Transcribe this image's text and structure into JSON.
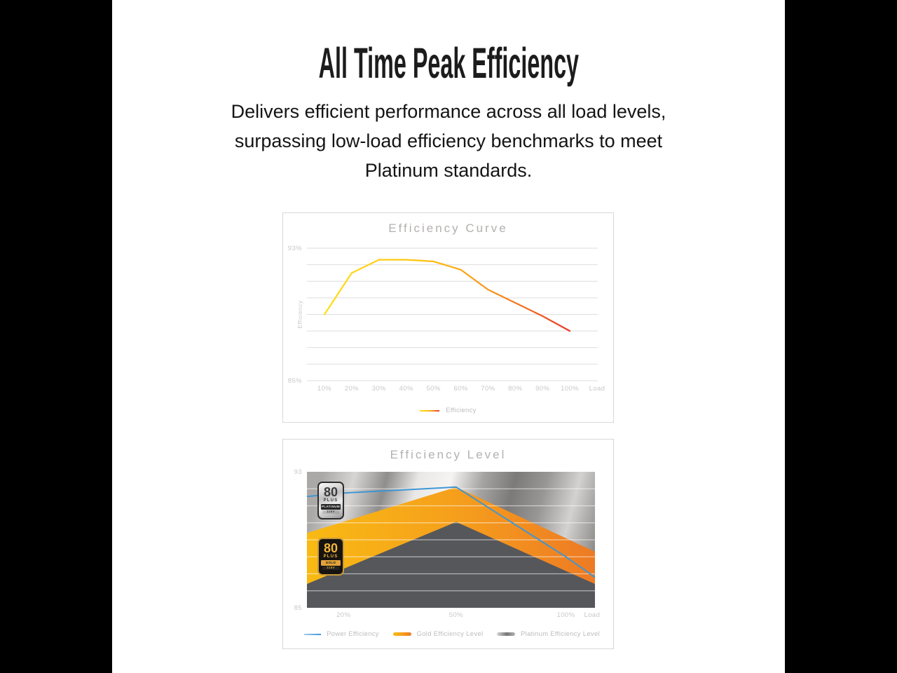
{
  "canvas": {
    "letterbox_color": "#000000",
    "content_bg": "#ffffff"
  },
  "header": {
    "title": "All Time Peak Efficiency",
    "subtitle_lines": [
      "Delivers efficient performance across all load levels,",
      "surpassing low-load efficiency benchmarks to meet",
      "Platinum standards."
    ]
  },
  "badges": {
    "platinum": {
      "number": "80",
      "plus": "PLUS",
      "tier": "PLATINUM",
      "volt": "115V"
    },
    "gold": {
      "number": "80",
      "plus": "PLUS",
      "tier": "GOLD",
      "volt": "115V"
    }
  },
  "chart_data": [
    {
      "type": "line",
      "title": "Efficiency Curve",
      "ylabel": "Efficiency",
      "xlabel": "Load",
      "ylim": [
        85,
        93
      ],
      "grid": true,
      "grid_color": "#dedede",
      "tick_color": "#c8c8c8",
      "y_tick_labels": {
        "top": "93%",
        "bottom": "85%"
      },
      "x_tick_labels": [
        "10%",
        "20%",
        "30%",
        "40%",
        "50%",
        "60%",
        "70%",
        "80%",
        "90%",
        "100%",
        "Load"
      ],
      "categories": [
        "10%",
        "20%",
        "30%",
        "40%",
        "50%",
        "60%",
        "70%",
        "80%",
        "90%",
        "100%"
      ],
      "series": [
        {
          "name": "Efficiency",
          "values": [
            89.0,
            91.5,
            92.3,
            92.3,
            92.2,
            91.7,
            90.5,
            89.7,
            88.9,
            88.0
          ],
          "gradient": [
            "#FFDE16",
            "#FFC20E",
            "#F7941D",
            "#E93826"
          ]
        }
      ],
      "legend": [
        {
          "label": "Efficiency",
          "swatch": "gradient-line"
        }
      ],
      "legend_position": "bottom-center"
    },
    {
      "type": "area",
      "title": "Efficiency Level",
      "xlabel": "Load",
      "ylim": [
        85,
        93
      ],
      "grid": true,
      "grid_color": "rgba(255,255,255,0.55)",
      "tick_color": "#c8c8c8",
      "y_tick_labels": {
        "top": "93",
        "bottom": "85"
      },
      "x_ticks": [
        {
          "label": "20%",
          "f": 0.127
        },
        {
          "label": "50%",
          "f": 0.518
        },
        {
          "label": "100%",
          "f": 0.899
        },
        {
          "label": "Load",
          "f": 0.99
        }
      ],
      "background_gradient": [
        "#aba9a7",
        "#d7d5d3",
        "#908e8c",
        "#e9e8e6",
        "#f5f4f2",
        "#a6a4a2",
        "#7c7a78",
        "#999795",
        "#d3d2d0",
        "#908e8b"
      ],
      "series": [
        {
          "name": "Gold Efficiency Level",
          "kind": "area",
          "points": [
            [
              0,
              85
            ],
            [
              0,
              89.4
            ],
            [
              0.518,
              92.1
            ],
            [
              1,
              88.3
            ],
            [
              1,
              85
            ]
          ],
          "gradient": [
            "#F8BA13",
            "#F6A01C",
            "#ED7A24"
          ]
        },
        {
          "name": "Platinum Efficiency Level",
          "kind": "area",
          "points": [
            [
              0,
              85
            ],
            [
              0,
              86.4
            ],
            [
              0.518,
              90.05
            ],
            [
              1,
              86.4
            ],
            [
              1,
              85
            ]
          ],
          "color": "#56575B"
        },
        {
          "name": "Power Efficiency",
          "kind": "line",
          "points": [
            [
              0,
              91.55
            ],
            [
              0.127,
              91.75
            ],
            [
              0.518,
              92.1
            ],
            [
              0.899,
              88.0
            ],
            [
              1,
              86.8
            ]
          ],
          "color": "#3F96D4"
        }
      ],
      "legend": [
        {
          "label": "Power Efficiency",
          "swatch": "line-blue"
        },
        {
          "label": "Gold Efficiency Level",
          "swatch": "band-gold"
        },
        {
          "label": "Platinum Efficiency Level",
          "swatch": "band-platinum"
        }
      ],
      "legend_position": "bottom-spread"
    }
  ]
}
